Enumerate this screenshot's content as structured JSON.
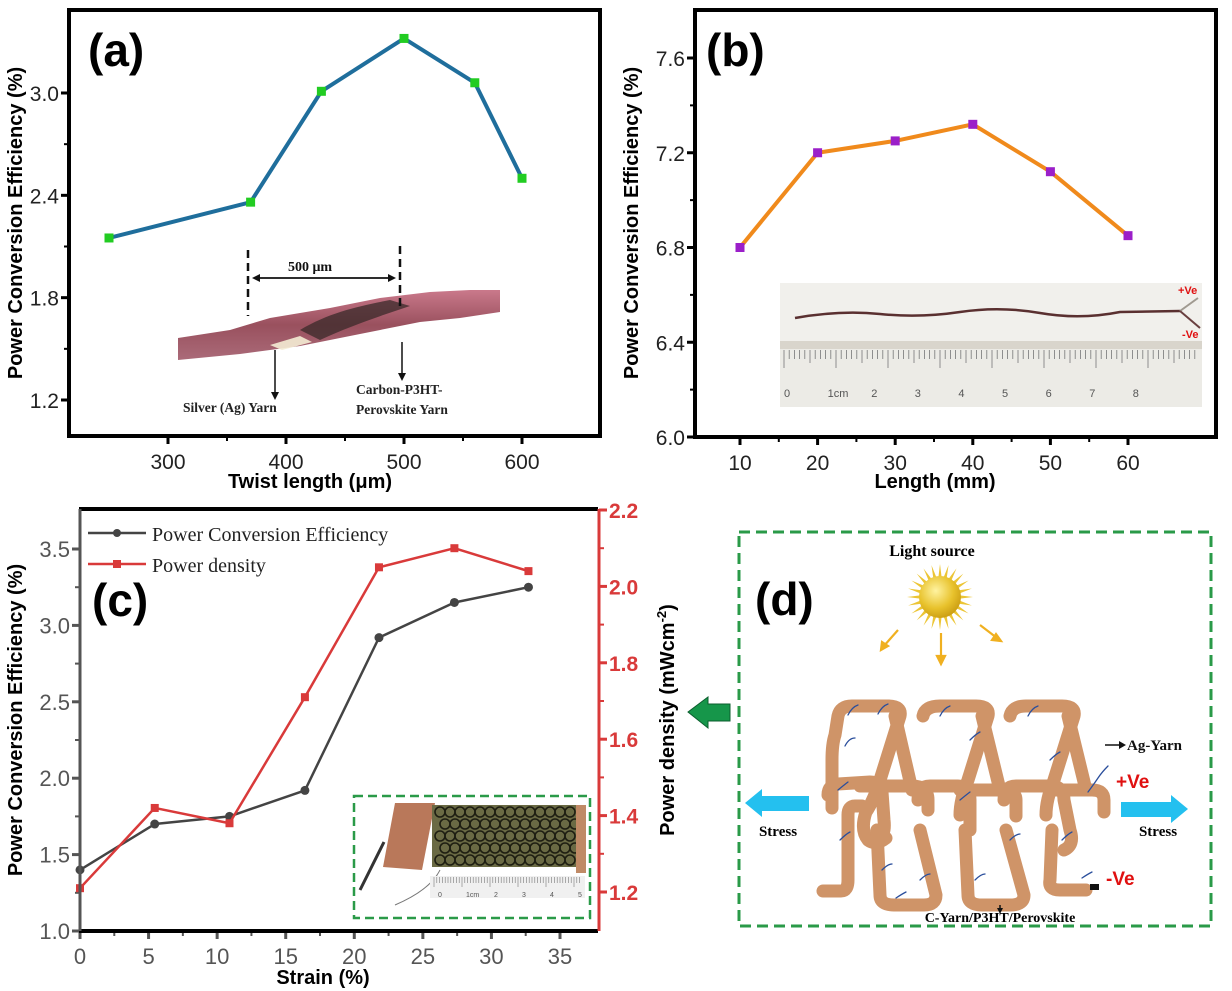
{
  "chart_data": [
    {
      "panel": "(a)",
      "type": "line",
      "title": "",
      "xlabel": "Twist length (μm)",
      "ylabel": "Power Conversion Efficiency (%)",
      "xlim": [
        230,
        650
      ],
      "ylim": [
        1.0,
        3.6
      ],
      "xticks": [
        300,
        400,
        500,
        600
      ],
      "xtick_labels": [
        "300",
        "400",
        "500",
        "600"
      ],
      "yticks": [
        1.2,
        1.8,
        2.4,
        3.0
      ],
      "ytick_labels": [
        "1.2",
        "1.8",
        "2.4",
        "3.0"
      ],
      "grid": false,
      "series": [
        {
          "name": "PCE",
          "line_color": "#1f6e9c",
          "marker_color": "#22cc22",
          "marker": "square",
          "x": [
            250,
            370,
            430,
            500,
            560,
            600
          ],
          "values": [
            2.15,
            2.36,
            3.01,
            3.32,
            3.06,
            2.5
          ]
        }
      ],
      "inset": {
        "description": "micrograph of twisted yarn",
        "scale_label": "500 μm",
        "label_left": "Silver (Ag) Yarn",
        "label_right_line1": "Carbon-P3HT-",
        "label_right_line2": "Perovskite Yarn"
      }
    },
    {
      "panel": "(b)",
      "type": "line",
      "title": "",
      "xlabel": "Length (mm)",
      "ylabel": "Power Conversion Efficiency (%)",
      "xlim": [
        5,
        65
      ],
      "ylim": [
        6.0,
        7.8
      ],
      "xticks": [
        10,
        20,
        30,
        40,
        50,
        60
      ],
      "xtick_labels": [
        "10",
        "20",
        "30",
        "40",
        "50",
        "60"
      ],
      "yticks": [
        6.0,
        6.4,
        6.8,
        7.2,
        7.6
      ],
      "ytick_labels": [
        "6.0",
        "6.4",
        "6.8",
        "7.2",
        "7.6"
      ],
      "grid": false,
      "series": [
        {
          "name": "PCE",
          "line_color": "#f08a1c",
          "marker_color": "#9b1fc9",
          "marker": "square",
          "x": [
            10,
            20,
            30,
            40,
            50,
            60
          ],
          "values": [
            6.8,
            7.2,
            7.25,
            7.32,
            7.12,
            6.85
          ]
        }
      ],
      "inset": {
        "description": "photo of fiber on ruler",
        "plus_label": "+Ve",
        "minus_label": "-Ve",
        "ruler_labels": [
          "0",
          "1cm",
          "2",
          "3",
          "4",
          "5",
          "6",
          "7",
          "8"
        ]
      }
    },
    {
      "panel": "(c)",
      "type": "line",
      "title": "",
      "xlabel": "Strain (%)",
      "ylabel": "Power Conversion Efficiency (%)",
      "ylabel_right": "Power density (mWcm⁻²)",
      "xlim": [
        0,
        37
      ],
      "ylim": [
        1.0,
        3.75
      ],
      "ylim_right": [
        1.1,
        2.2
      ],
      "xticks": [
        0,
        5,
        10,
        15,
        20,
        25,
        30,
        35
      ],
      "xtick_labels": [
        "0",
        "5",
        "10",
        "15",
        "20",
        "25",
        "30",
        "35"
      ],
      "yticks": [
        1.0,
        1.5,
        2.0,
        2.5,
        3.0,
        3.5
      ],
      "ytick_labels": [
        "1.0",
        "1.5",
        "2.0",
        "2.5",
        "3.0",
        "3.5"
      ],
      "yticks_right": [
        1.2,
        1.4,
        1.6,
        1.8,
        2.0,
        2.2
      ],
      "ytick_labels_right": [
        "1.2",
        "1.4",
        "1.6",
        "1.8",
        "2.0",
        "2.2"
      ],
      "grid": false,
      "legend_position": "top-left",
      "series": [
        {
          "name": "Power Conversion Efficiency",
          "axis": "left",
          "color": "#444444",
          "marker": "circle",
          "x": [
            0,
            5.45,
            10.9,
            16.4,
            21.8,
            27.3,
            32.7
          ],
          "values": [
            1.4,
            1.7,
            1.75,
            1.92,
            2.92,
            3.15,
            3.25
          ]
        },
        {
          "name": "Power density",
          "axis": "right",
          "color": "#d93a3a",
          "marker": "square",
          "x": [
            0,
            5.45,
            10.9,
            16.4,
            21.8,
            27.3,
            32.7
          ],
          "values": [
            1.21,
            1.42,
            1.38,
            1.71,
            2.05,
            2.1,
            2.04
          ]
        }
      ],
      "inset": {
        "description": "photo of knitted fabric device with copper electrodes",
        "ruler_labels": [
          "0",
          "1cm",
          "2",
          "3",
          "4",
          "5"
        ]
      }
    }
  ],
  "panel_d": {
    "label": "(d)",
    "light_source": "Light source",
    "ag_yarn": "Ag-Yarn",
    "plus": "+Ve",
    "minus": "-Ve",
    "stress_left": "Stress",
    "stress_right": "Stress",
    "c_yarn": "C-Yarn/P3HT/Perovskite"
  },
  "colors": {
    "dash_green": "#2a9a48",
    "arrow_green": "#16964a",
    "stress_blue": "#24c0ef",
    "yarn": "#cf9468",
    "ag_line": "#2a4e9c",
    "red_label": "#e01010"
  }
}
